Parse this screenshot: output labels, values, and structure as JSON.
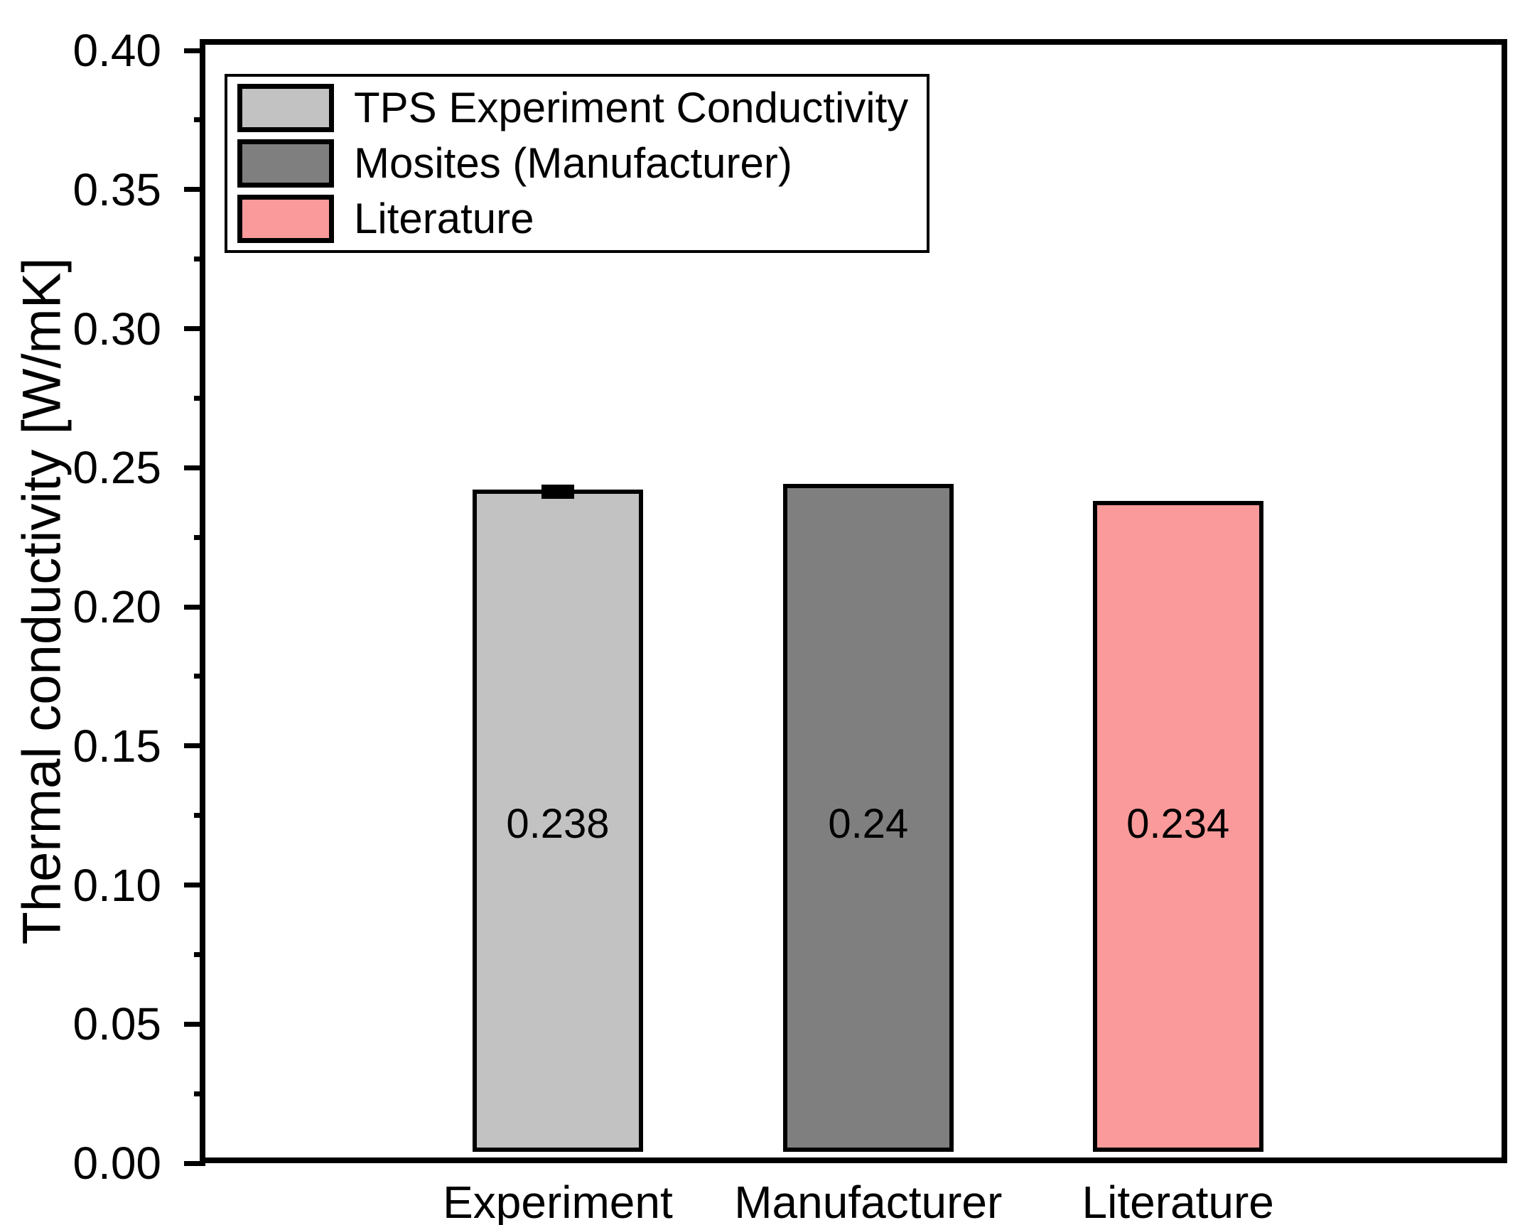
{
  "chart_data": {
    "type": "bar",
    "ylabel": "Thermal conductivity [W/mK]",
    "xlabel": "",
    "ylim": [
      0.0,
      0.4
    ],
    "y_major_tick_step": 0.05,
    "y_minor_tick_step": 0.025,
    "y_tick_labels": [
      "0.00",
      "0.05",
      "0.10",
      "0.15",
      "0.20",
      "0.25",
      "0.30",
      "0.35",
      "0.40"
    ],
    "grid": false,
    "categories": [
      "Experiment",
      "Manufacturer",
      "Literature"
    ],
    "values": [
      0.238,
      0.24,
      0.234
    ],
    "value_labels": [
      "0.238",
      "0.24",
      "0.234"
    ],
    "errors": [
      0.002,
      0,
      0
    ],
    "bar_colors": [
      "#c2c2c2",
      "#7f7f7f",
      "#fa9a9a"
    ],
    "bar_edge_color": "#000000",
    "axis_color": "#000000",
    "legend": {
      "position": "top-left",
      "entries": [
        {
          "label": "TPS Experiment Conductivity",
          "color": "#c2c2c2"
        },
        {
          "label": "Mosites (Manufacturer)",
          "color": "#7f7f7f"
        },
        {
          "label": "Literature",
          "color": "#fa9a9a"
        }
      ]
    }
  }
}
